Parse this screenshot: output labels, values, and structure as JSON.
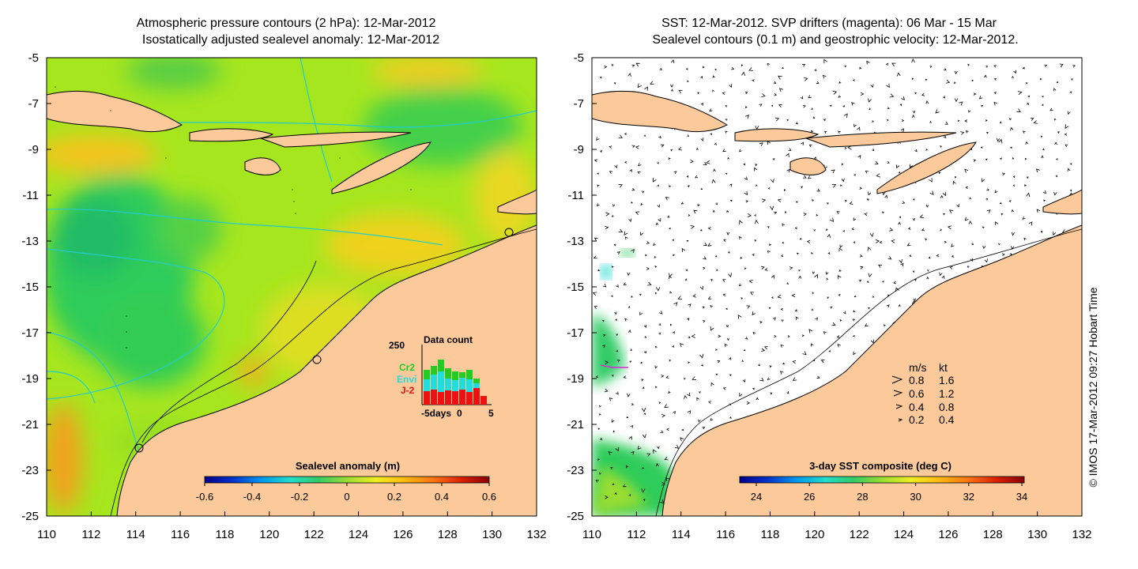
{
  "left_panel": {
    "title_line1": "Atmospheric pressure contours (2 hPa): 12-Mar-2012",
    "title_line2": "Isostatically adjusted sealevel anomaly: 12-Mar-2012",
    "colorbar": {
      "label": "Sealevel anomaly (m)",
      "ticks": [
        "-0.6",
        "-0.4",
        "-0.2",
        "0",
        "0.2",
        "0.4",
        "0.6"
      ],
      "colors": [
        "#00008b",
        "#0033cc",
        "#0099ee",
        "#22ddcc",
        "#33cc66",
        "#99dd33",
        "#eeee22",
        "#ffbb11",
        "#ff7711",
        "#dd2200",
        "#8b0000"
      ]
    },
    "inset": {
      "title": "Data count",
      "ymax_label": "250",
      "xlabel": "-5days",
      "x_ticks": [
        "0",
        "5"
      ],
      "legend": [
        {
          "name": "Cr2",
          "color": "#22cc22"
        },
        {
          "name": "Envi",
          "color": "#22dddd"
        },
        {
          "name": "J-2",
          "color": "#ee1111"
        }
      ]
    }
  },
  "right_panel": {
    "title_line1": "SST: 12-Mar-2012. SVP drifters (magenta): 06 Mar - 15 Mar",
    "title_line2": "Sealevel contours (0.1 m) and geostrophic velocity: 12-Mar-2012.",
    "colorbar": {
      "label": "3-day SST composite (deg C)",
      "ticks": [
        "24",
        "26",
        "28",
        "30",
        "32",
        "34"
      ],
      "colors": [
        "#00008b",
        "#0033cc",
        "#0099ee",
        "#22ddcc",
        "#33cc66",
        "#99dd33",
        "#eeee22",
        "#ffbb11",
        "#ff7711",
        "#dd2200",
        "#8b0000"
      ]
    },
    "speed_legend": {
      "header_ms": "m/s",
      "header_kt": "kt",
      "rows": [
        {
          "ms": "0.8",
          "kt": "1.6"
        },
        {
          "ms": "0.6",
          "kt": "1.2"
        },
        {
          "ms": "0.4",
          "kt": "0.8"
        },
        {
          "ms": "0.2",
          "kt": "0.4"
        }
      ]
    }
  },
  "axes": {
    "lat_labels": [
      "-5",
      "-7",
      "-9",
      "-11",
      "-13",
      "-15",
      "-17",
      "-19",
      "-21",
      "-23",
      "-25"
    ],
    "lon_labels": [
      "110",
      "112",
      "114",
      "116",
      "118",
      "120",
      "122",
      "124",
      "126",
      "128",
      "130",
      "132"
    ]
  },
  "side_label": "© IMOS 17-Mar-2012 09:27 Hobart Time",
  "colors": {
    "land": "#fbc99a",
    "coast": "#000000",
    "contour_cyan": "#22cccc",
    "ocean_base": "#a6e61e",
    "ocean_low": "#2ecc5a",
    "ocean_high": "#f4d41c"
  }
}
